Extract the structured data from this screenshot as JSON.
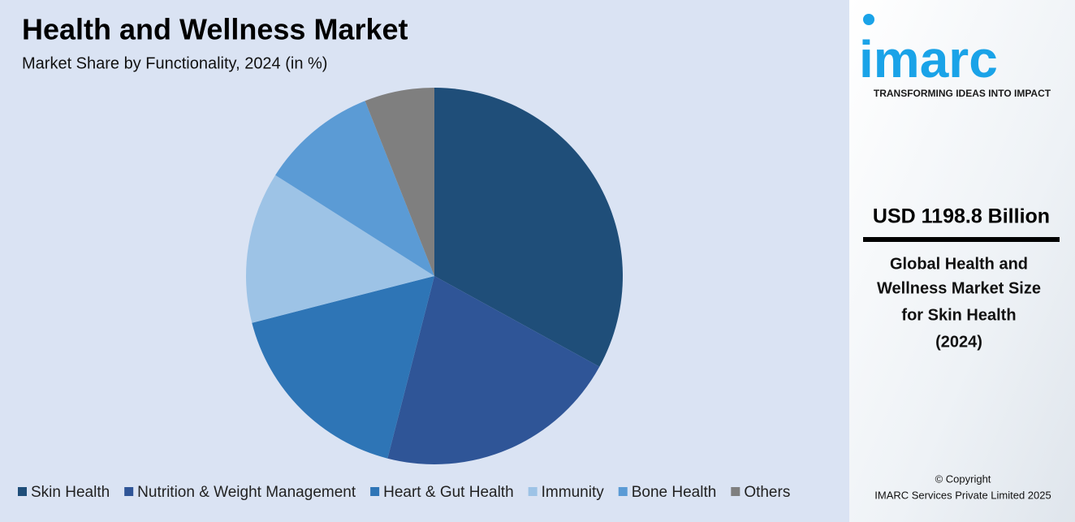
{
  "chart_data": {
    "type": "pie",
    "title": "Health and Wellness Market",
    "subtitle": "Market Share by Functionality, 2024 (in %)",
    "categories": [
      "Skin Health",
      "Nutrition & Weight Management",
      "Heart & Gut Health",
      "Immunity",
      "Bone Health",
      "Others"
    ],
    "values": [
      33,
      21,
      17,
      13,
      10,
      6
    ],
    "colors": [
      "#1f4e79",
      "#2f5597",
      "#2e75b6",
      "#9dc3e6",
      "#5b9bd5",
      "#7f7f7f"
    ],
    "legend": "bottom"
  },
  "sidebar": {
    "logo": "imarc",
    "tagline": "TRANSFORMING IDEAS INTO IMPACT",
    "headline": "USD 1198.8 Billion",
    "description": [
      "Global Health and",
      "Wellness Market Size",
      "for Skin Health",
      "(2024)"
    ],
    "copyright": [
      "© Copyright",
      "IMARC Services Private Limited 2025"
    ]
  }
}
